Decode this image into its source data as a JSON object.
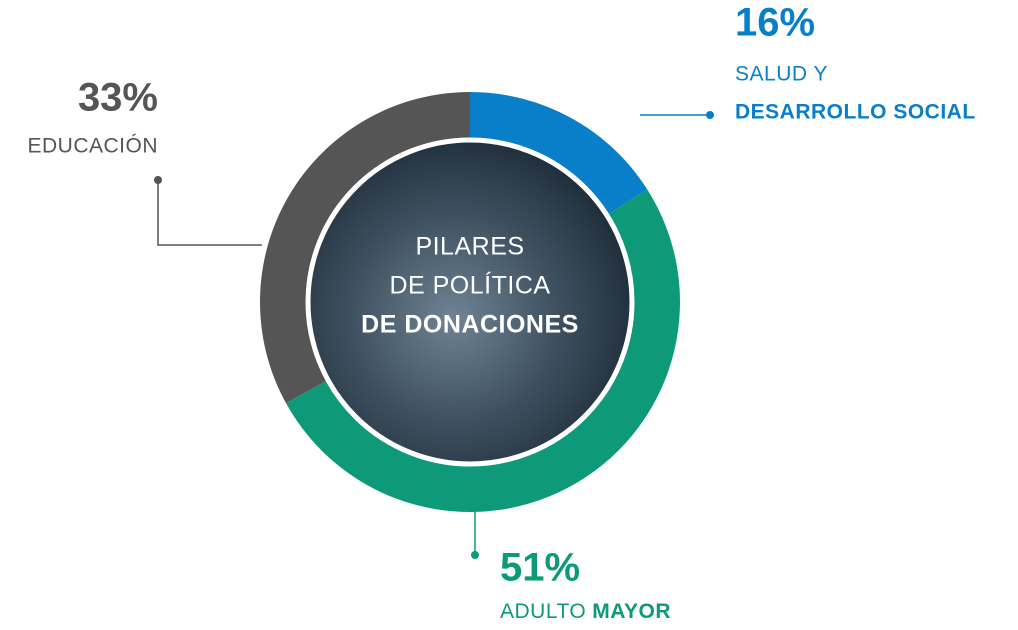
{
  "chart_data": {
    "type": "donut",
    "center_text": [
      "PILARES",
      "DE POLÍTICA",
      "DE DONACIONES"
    ],
    "categories": [
      [
        "SALUD Y",
        "DESARROLLO SOCIAL"
      ],
      [
        "ADULTO",
        "MAYOR"
      ],
      [
        "EDUCACIÓN"
      ]
    ],
    "values": [
      16,
      51,
      33
    ],
    "value_labels": [
      "16%",
      "51%",
      "33%"
    ],
    "colors": [
      "#0a7fc9",
      "#0e9a78",
      "#555555"
    ]
  }
}
